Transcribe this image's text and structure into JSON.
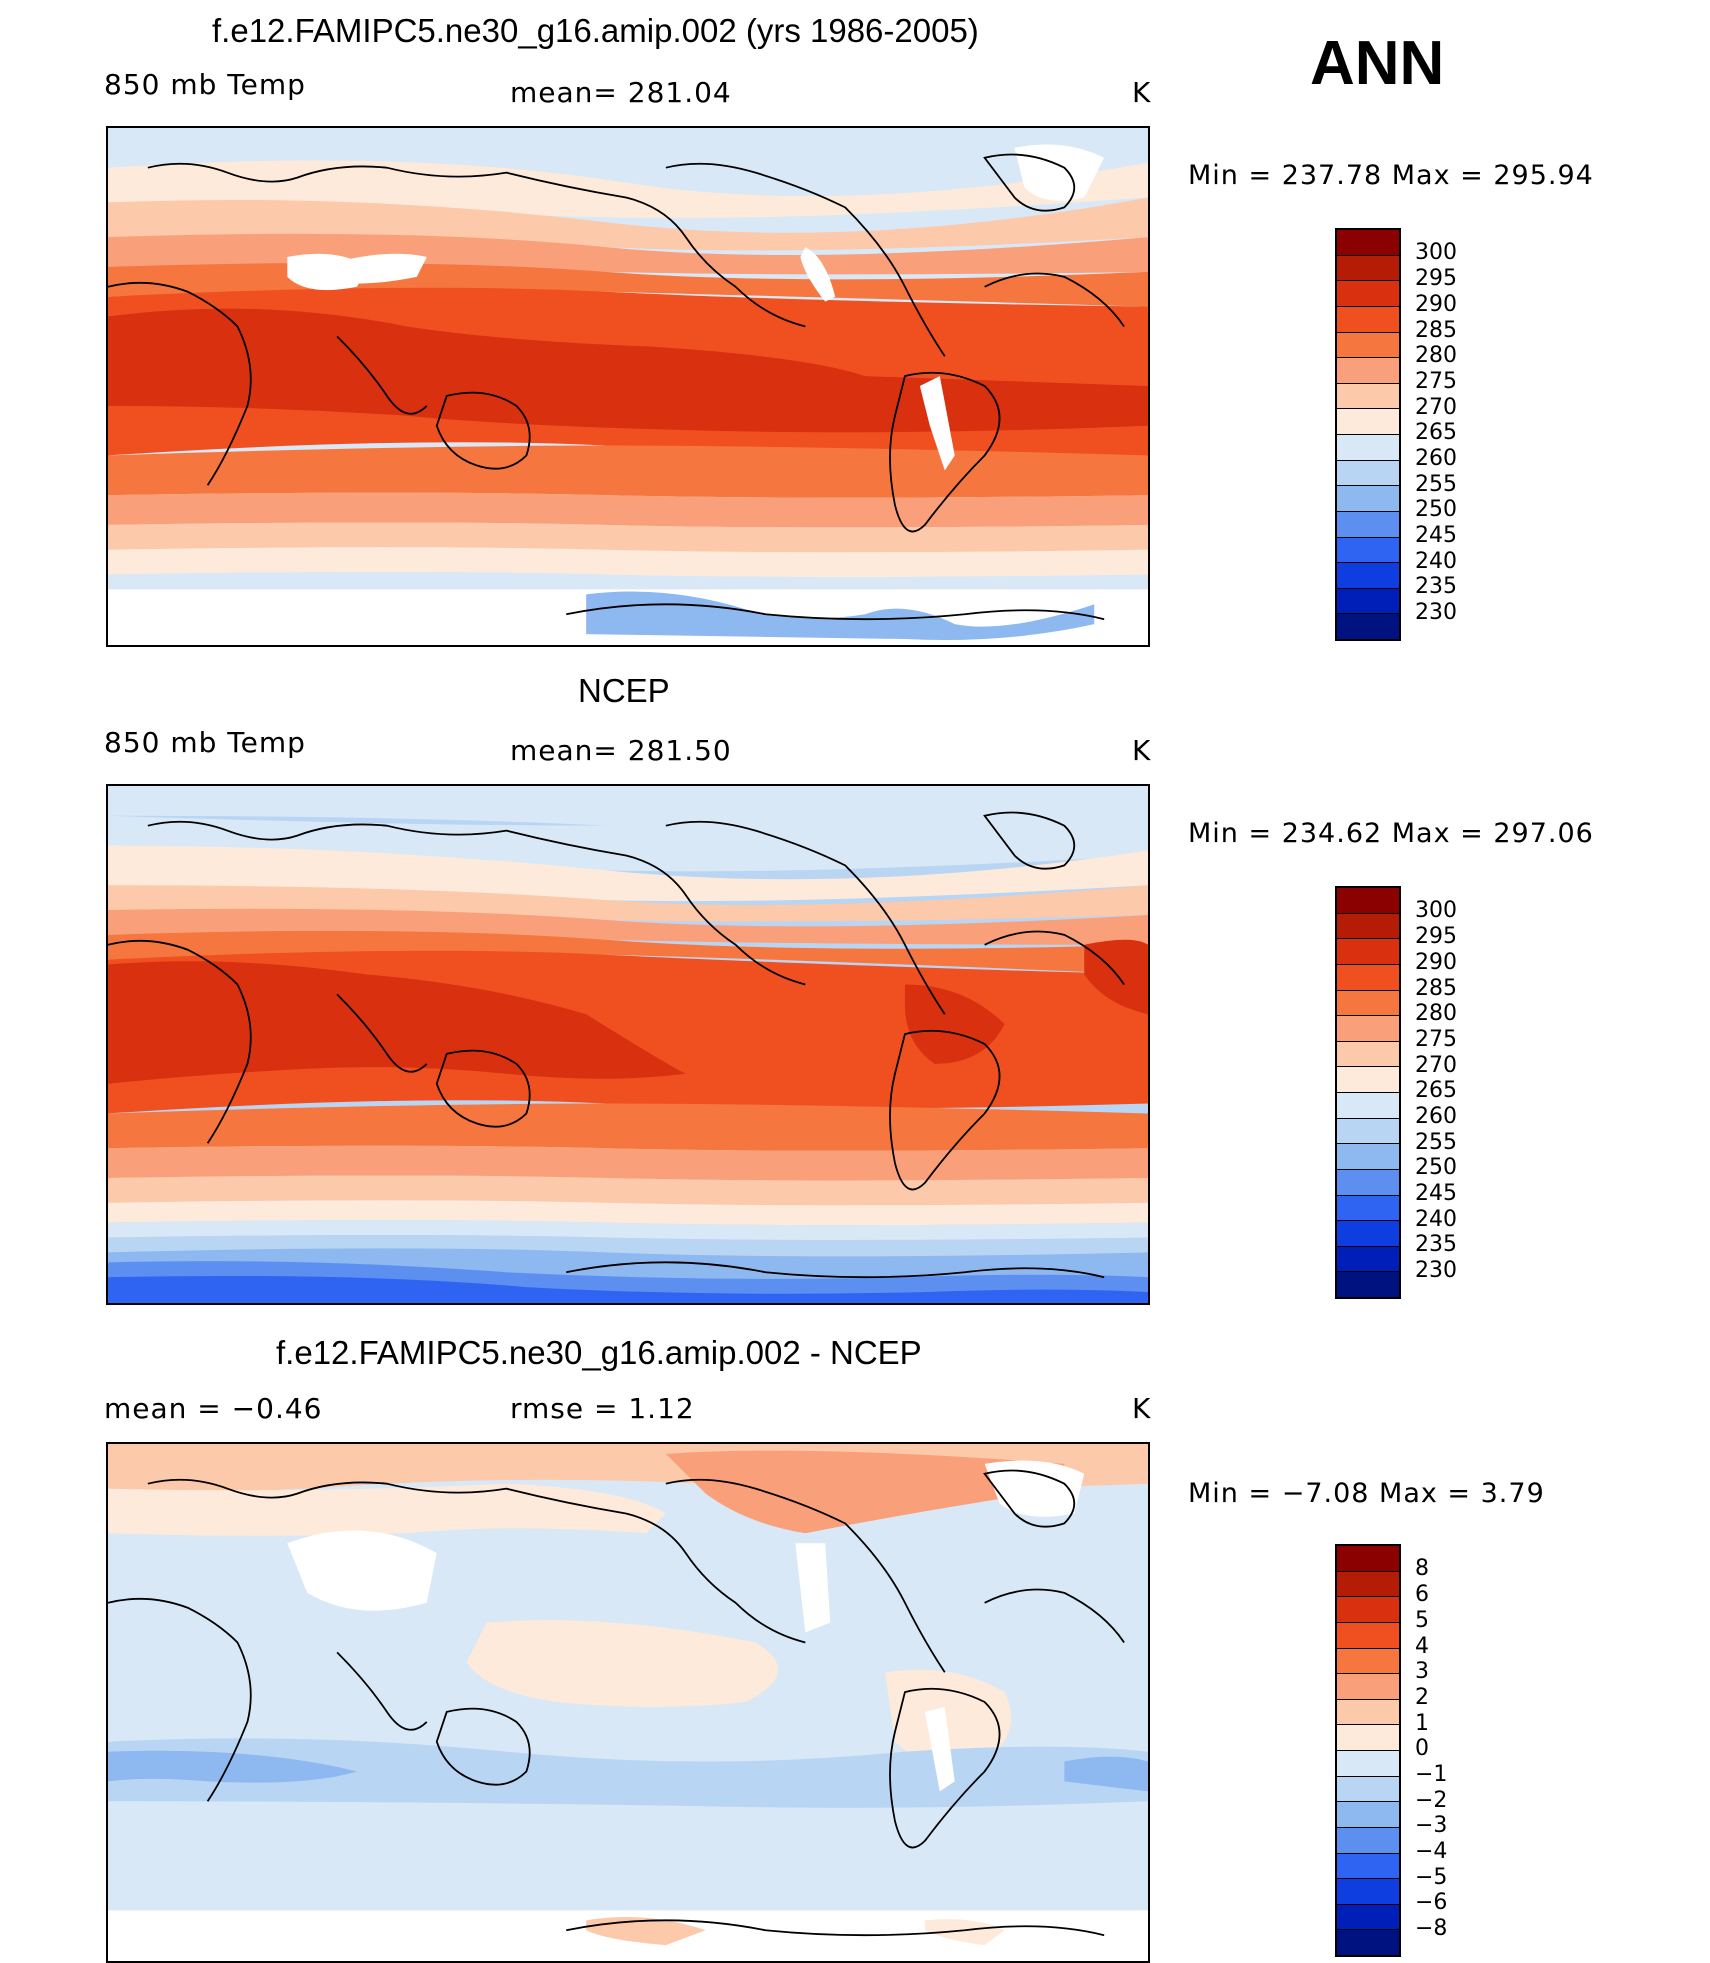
{
  "season": "ANN",
  "units": "K",
  "panels": [
    {
      "title": "f.e12.FAMIPC5.ne30_g16.amip.002 (yrs 1986-2005)",
      "left_label": "850 mb Temp",
      "center_label": "mean=  281.04",
      "right_label": "K",
      "min_max": "Min  =  237.78  Max  =  295.94",
      "colorbar_labels": [
        "300",
        "295",
        "290",
        "285",
        "280",
        "275",
        "270",
        "265",
        "260",
        "255",
        "250",
        "245",
        "240",
        "235",
        "230"
      ]
    },
    {
      "title": "NCEP",
      "left_label": "850 mb Temp",
      "center_label": "mean=  281.50",
      "right_label": "K",
      "min_max": "Min  =  234.62  Max  =  297.06",
      "colorbar_labels": [
        "300",
        "295",
        "290",
        "285",
        "280",
        "275",
        "270",
        "265",
        "260",
        "255",
        "250",
        "245",
        "240",
        "235",
        "230"
      ]
    },
    {
      "title": "f.e12.FAMIPC5.ne30_g16.amip.002 - NCEP",
      "left_label": "mean  =    −0.46",
      "center_label": "rmse  =     1.12",
      "right_label": "K",
      "min_max": "Min  =    −7.08  Max  =      3.79",
      "colorbar_labels": [
        "8",
        "6",
        "5",
        "4",
        "3",
        "2",
        "1",
        "0",
        "−1",
        "−2",
        "−3",
        "−4",
        "−5",
        "−6",
        "−8"
      ]
    }
  ],
  "colors": {
    "abs_scale": [
      "#8b0000",
      "#b51c06",
      "#d93010",
      "#f05020",
      "#f5773f",
      "#f9a07a",
      "#fcc9aa",
      "#fdeadb",
      "#d8e8f7",
      "#b9d5f4",
      "#8eb8f0",
      "#5d8ff0",
      "#2f63f2",
      "#0f3ee0",
      "#001fb8",
      "#00127f"
    ],
    "diff_scale": [
      "#8b0000",
      "#b51c06",
      "#d93010",
      "#f05020",
      "#f5773f",
      "#f9a07a",
      "#fcc9aa",
      "#fdeadb",
      "#d8e8f7",
      "#b9d5f4",
      "#8eb8f0",
      "#5d8ff0",
      "#2f63f2",
      "#0f3ee0",
      "#001fb8",
      "#00127f"
    ]
  }
}
